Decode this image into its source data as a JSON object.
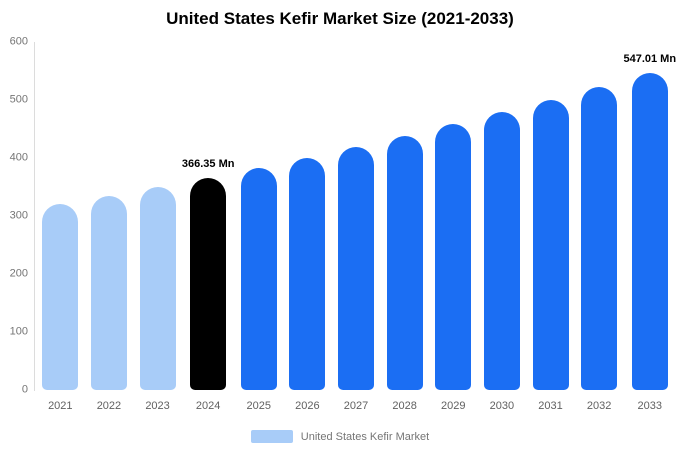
{
  "chart": {
    "title": "United States Kefir Market Size (2021-2033)",
    "legend_label": "United States Kefir Market"
  },
  "chart_data": {
    "type": "bar",
    "title": "United States Kefir Market Size (2021-2033)",
    "categories": [
      "2021",
      "2022",
      "2023",
      "2024",
      "2025",
      "2026",
      "2027",
      "2028",
      "2029",
      "2030",
      "2031",
      "2032",
      "2033"
    ],
    "values": [
      320,
      335,
      350,
      366.35,
      383,
      400,
      419,
      438,
      458,
      479,
      500,
      523,
      547.01
    ],
    "unit": "Mn",
    "xlabel": "",
    "ylabel": "",
    "ylim": [
      0,
      600
    ],
    "yticks": [
      0,
      100,
      200,
      300,
      400,
      500,
      600
    ],
    "grid": false,
    "legend_position": "bottom",
    "legend_color": "#a8ccf8",
    "bar_colors": [
      "#a8ccf8",
      "#a8ccf8",
      "#a8ccf8",
      "#000000",
      "#1b6ef3",
      "#1b6ef3",
      "#1b6ef3",
      "#1b6ef3",
      "#1b6ef3",
      "#1b6ef3",
      "#1b6ef3",
      "#1b6ef3",
      "#1b6ef3"
    ],
    "annotations": [
      {
        "category": "2024",
        "text": "366.35 Mn"
      },
      {
        "category": "2033",
        "text": "547.01 Mn"
      }
    ]
  }
}
